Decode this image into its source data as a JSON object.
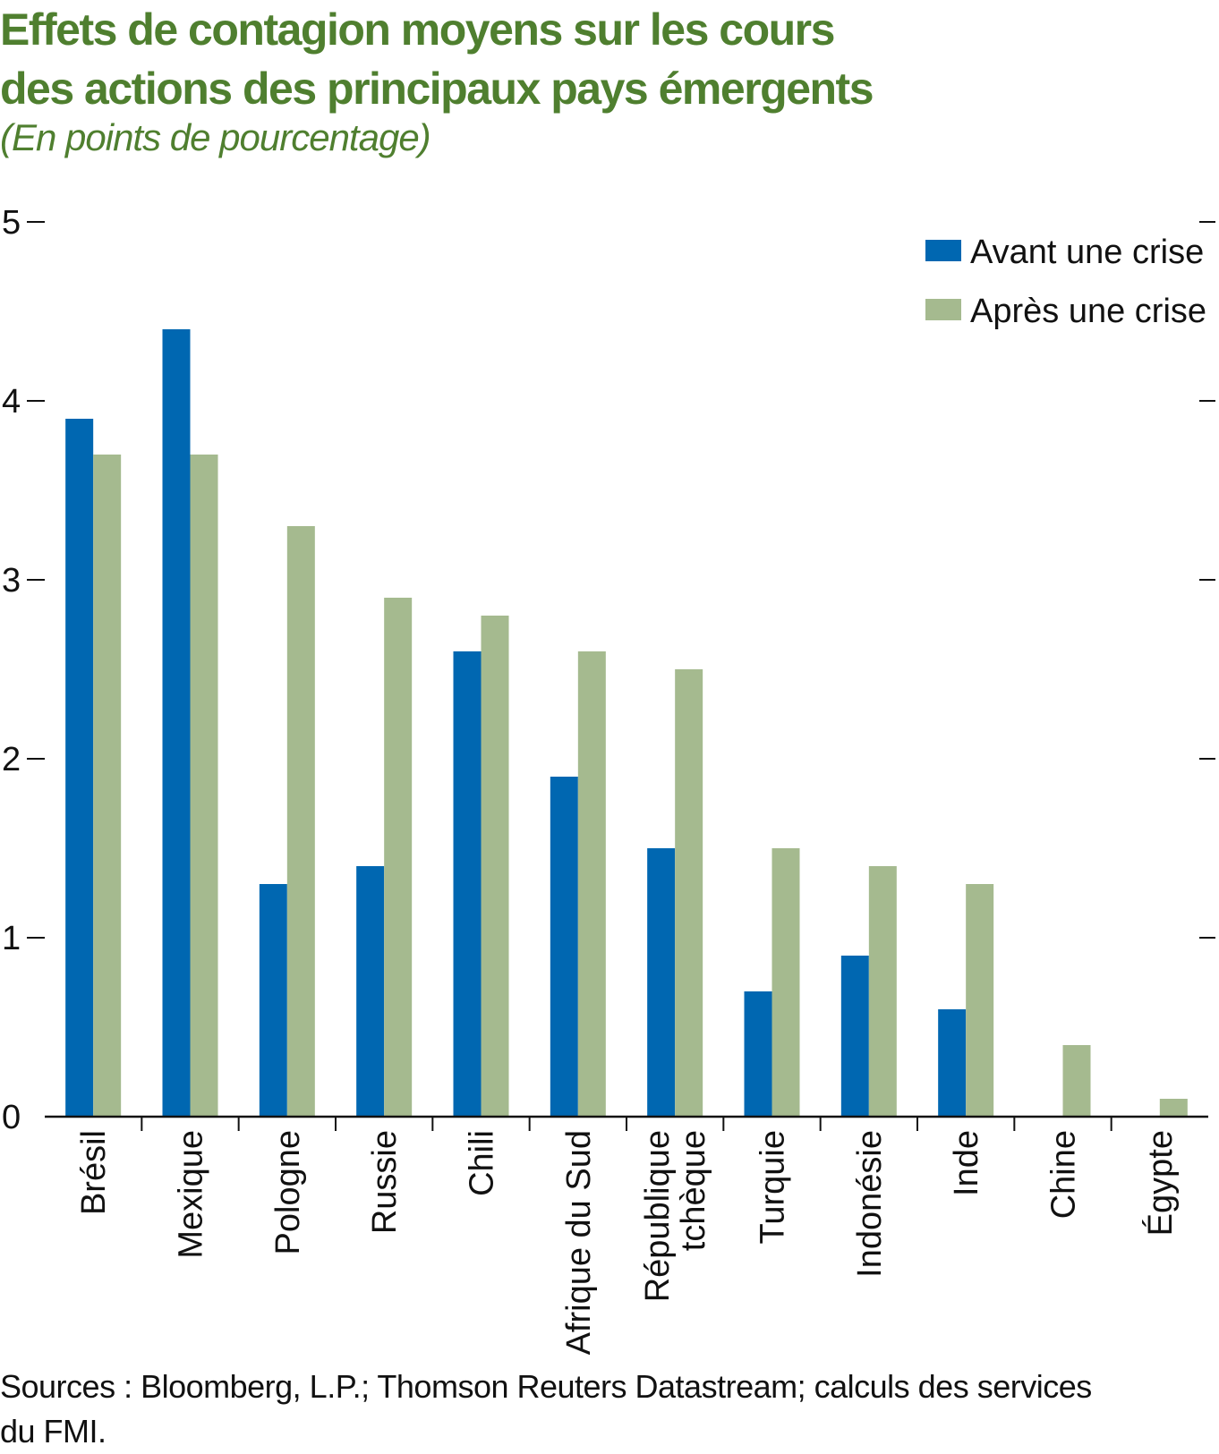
{
  "title_lines": [
    "Effets de contagion moyens sur les cours",
    "des actions des principaux pays émergents"
  ],
  "subtitle": "(En points de pourcentage)",
  "source_lines": [
    "Sources : Bloomberg, L.P.; Thomson Reuters Datastream; calculs des services",
    "du FMI."
  ],
  "colors": {
    "title": "#4f7f2f",
    "avant": "#0067b1",
    "apres": "#a5ba8f",
    "axis": "#111111"
  },
  "chart_data": {
    "type": "bar",
    "title": "Effets de contagion moyens sur les cours des actions des principaux pays émergents",
    "ylabel": "En points de pourcentage",
    "ylim": [
      0,
      5
    ],
    "yticks": [
      0,
      1,
      2,
      3,
      4,
      5
    ],
    "legend_position": "top-right",
    "categories": [
      "Brésil",
      "Mexique",
      "Pologne",
      "Russie",
      "Chili",
      "Afrique du Sud",
      "République tchèque",
      "Turquie",
      "Indonésie",
      "Inde",
      "Chine",
      "Égypte"
    ],
    "category_lines": [
      [
        "Brésil"
      ],
      [
        "Mexique"
      ],
      [
        "Pologne"
      ],
      [
        "Russie"
      ],
      [
        "Chili"
      ],
      [
        "Afrique du Sud"
      ],
      [
        "République",
        "tchèque"
      ],
      [
        "Turquie"
      ],
      [
        "Indonésie"
      ],
      [
        "Inde"
      ],
      [
        "Chine"
      ],
      [
        "Égypte"
      ]
    ],
    "series": [
      {
        "name": "Avant une crise",
        "color": "#0067b1",
        "values": [
          3.9,
          4.4,
          1.3,
          1.4,
          2.6,
          1.9,
          1.5,
          0.7,
          0.9,
          0.6,
          0.0,
          0.0
        ]
      },
      {
        "name": "Après une crise",
        "color": "#a5ba8f",
        "values": [
          3.7,
          3.7,
          3.3,
          2.9,
          2.8,
          2.6,
          2.5,
          1.5,
          1.4,
          1.3,
          0.4,
          0.1
        ]
      }
    ]
  }
}
